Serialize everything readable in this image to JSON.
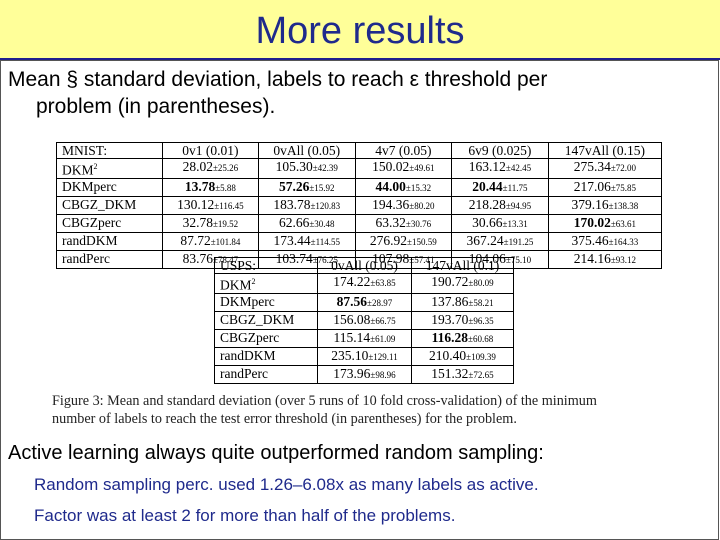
{
  "title": "More results",
  "intro": {
    "line1": "Mean § standard deviation, labels to reach ε threshold per",
    "line2": "problem (in parentheses)."
  },
  "table1": {
    "headers": [
      "MNIST:",
      "0v1 (0.01)",
      "0vAll (0.05)",
      "4v7 (0.05)",
      "6v9 (0.025)",
      "147vAll (0.15)"
    ],
    "rows": [
      {
        "method": "DKM2",
        "cells": [
          {
            "m": "28.02",
            "s": "±25.26",
            "b": false
          },
          {
            "m": "105.30",
            "s": "±42.39",
            "b": false
          },
          {
            "m": "150.02",
            "s": "±49.61",
            "b": false
          },
          {
            "m": "163.12",
            "s": "±42.45",
            "b": false
          },
          {
            "m": "275.34",
            "s": "±72.00",
            "b": false
          }
        ]
      },
      {
        "method": "DKMperc",
        "cells": [
          {
            "m": "13.78",
            "s": "±5.88",
            "b": true
          },
          {
            "m": "57.26",
            "s": "±15.92",
            "b": true
          },
          {
            "m": "44.00",
            "s": "±15.32",
            "b": true
          },
          {
            "m": "20.44",
            "s": "±11.75",
            "b": true
          },
          {
            "m": "217.06",
            "s": "±75.85",
            "b": false
          }
        ]
      },
      {
        "method": "CBGZ_DKM",
        "cells": [
          {
            "m": "130.12",
            "s": "±116.45",
            "b": false
          },
          {
            "m": "183.78",
            "s": "±120.83",
            "b": false
          },
          {
            "m": "194.36",
            "s": "±80.20",
            "b": false
          },
          {
            "m": "218.28",
            "s": "±94.95",
            "b": false
          },
          {
            "m": "379.16",
            "s": "±138.38",
            "b": false
          }
        ]
      },
      {
        "method": "CBGZperc",
        "cells": [
          {
            "m": "32.78",
            "s": "±19.52",
            "b": false
          },
          {
            "m": "62.66",
            "s": "±30.48",
            "b": false
          },
          {
            "m": "63.32",
            "s": "±30.76",
            "b": false
          },
          {
            "m": "30.66",
            "s": "±13.31",
            "b": false
          },
          {
            "m": "170.02",
            "s": "±63.61",
            "b": true
          }
        ]
      },
      {
        "method": "randDKM",
        "cells": [
          {
            "m": "87.72",
            "s": "±101.84",
            "b": false
          },
          {
            "m": "173.44",
            "s": "±114.55",
            "b": false
          },
          {
            "m": "276.92",
            "s": "±150.59",
            "b": false
          },
          {
            "m": "367.24",
            "s": "±191.25",
            "b": false
          },
          {
            "m": "375.46",
            "s": "±164.33",
            "b": false
          }
        ]
      },
      {
        "method": "randPerc",
        "cells": [
          {
            "m": "83.76",
            "s": "±78.47",
            "b": false
          },
          {
            "m": "103.74",
            "s": "±76.25",
            "b": false
          },
          {
            "m": "107.98",
            "s": "±57.41",
            "b": false
          },
          {
            "m": "104.06",
            "s": "±75.10",
            "b": false
          },
          {
            "m": "214.16",
            "s": "±93.12",
            "b": false
          }
        ]
      }
    ]
  },
  "table2": {
    "headers": [
      "USPS:",
      "0vAll (0.05)",
      "147vAll (0.1)"
    ],
    "rows": [
      {
        "method": "DKM2",
        "cells": [
          {
            "m": "174.22",
            "s": "±63.85",
            "b": false
          },
          {
            "m": "190.72",
            "s": "±80.09",
            "b": false
          }
        ]
      },
      {
        "method": "DKMperc",
        "cells": [
          {
            "m": "87.56",
            "s": "±28.97",
            "b": true
          },
          {
            "m": "137.86",
            "s": "±58.21",
            "b": false
          }
        ]
      },
      {
        "method": "CBGZ_DKM",
        "cells": [
          {
            "m": "156.08",
            "s": "±66.75",
            "b": false
          },
          {
            "m": "193.70",
            "s": "±96.35",
            "b": false
          }
        ]
      },
      {
        "method": "CBGZperc",
        "cells": [
          {
            "m": "115.14",
            "s": "±61.09",
            "b": false
          },
          {
            "m": "116.28",
            "s": "±60.68",
            "b": true
          }
        ]
      },
      {
        "method": "randDKM",
        "cells": [
          {
            "m": "235.10",
            "s": "±129.11",
            "b": false
          },
          {
            "m": "210.40",
            "s": "±109.39",
            "b": false
          }
        ]
      },
      {
        "method": "randPerc",
        "cells": [
          {
            "m": "173.96",
            "s": "±98.96",
            "b": false
          },
          {
            "m": "151.32",
            "s": "±72.65",
            "b": false
          }
        ]
      }
    ]
  },
  "caption": {
    "line1": "Figure 3:  Mean and standard deviation (over 5 runs of 10 fold cross-validation) of the minimum",
    "line2": "number of labels to reach the test error threshold (in parentheses) for the problem."
  },
  "conclusion": "Active learning always quite outperformed random sampling:",
  "bullets": [
    "Random sampling perc. used 1.26–6.08x as many labels as active.",
    "Factor was at least 2 for more than half of the problems."
  ],
  "colors": {
    "title_bg": "#ffff99",
    "title_text": "#1f2a8c",
    "bullet_text": "#1f2a8c"
  }
}
